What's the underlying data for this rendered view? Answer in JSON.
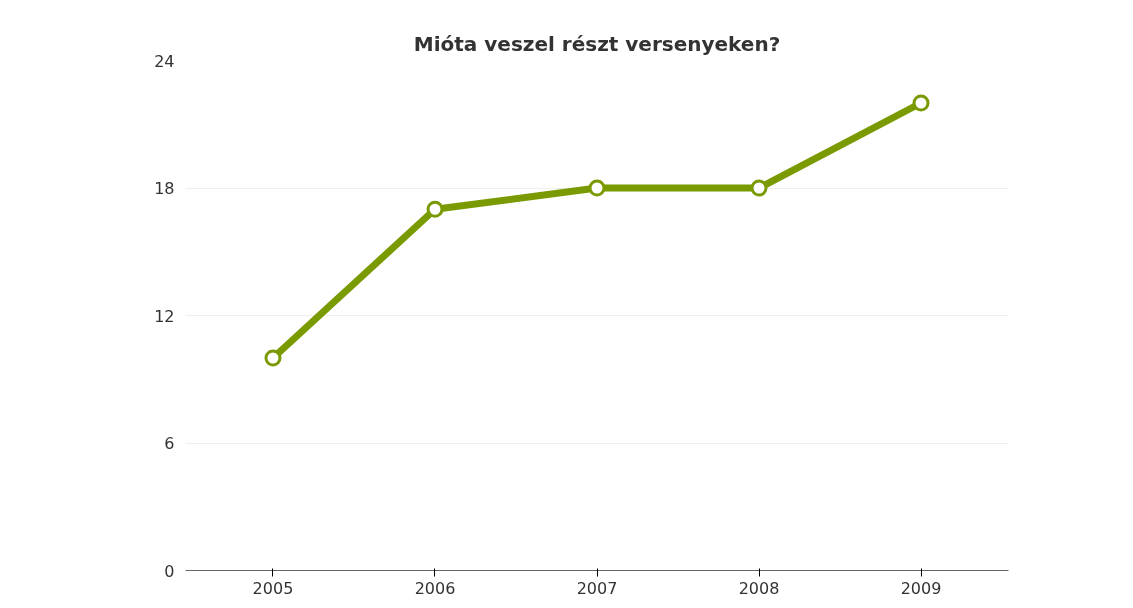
{
  "chart_data": {
    "type": "line",
    "title": "Mióta veszel részt versenyeken?",
    "categories": [
      "2005",
      "2006",
      "2007",
      "2008",
      "2009"
    ],
    "series": [
      {
        "color": "#7a9a01",
        "values": [
          10,
          17,
          18,
          18,
          22
        ]
      }
    ],
    "ylim": [
      0,
      24
    ],
    "yticks": [
      0,
      6,
      12,
      18,
      24
    ],
    "grid": "y",
    "marker": "circle"
  }
}
